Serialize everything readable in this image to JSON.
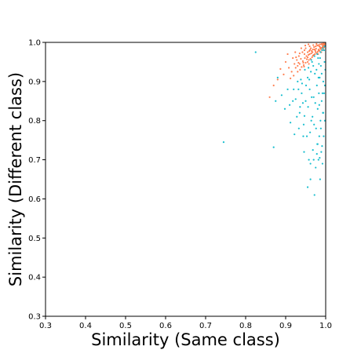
{
  "chart_data": {
    "type": "scatter",
    "title": "",
    "xlabel": "Similarity (Same class)",
    "ylabel": "Similarity (Different class)",
    "xlim": [
      0.3,
      1.0
    ],
    "ylim": [
      0.3,
      1.0
    ],
    "x_ticks": [
      "0.3",
      "0.4",
      "0.5",
      "0.6",
      "0.7",
      "0.8",
      "0.9",
      "1.0"
    ],
    "y_ticks": [
      "0.3",
      "0.4",
      "0.5",
      "0.6",
      "0.7",
      "0.8",
      "0.9",
      "1.0"
    ],
    "grid": false,
    "legend": "none",
    "series": [
      {
        "color": "#ff7f50",
        "points": [
          [
            0.975,
            0.975
          ],
          [
            0.978,
            0.972
          ],
          [
            0.982,
            0.98
          ],
          [
            0.985,
            0.978
          ],
          [
            0.988,
            0.983
          ],
          [
            0.99,
            0.986
          ],
          [
            0.992,
            0.988
          ],
          [
            0.97,
            0.968
          ],
          [
            0.966,
            0.962
          ],
          [
            0.973,
            0.97
          ],
          [
            0.98,
            0.976
          ],
          [
            0.983,
            0.982
          ],
          [
            0.987,
            0.985
          ],
          [
            0.993,
            0.99
          ],
          [
            0.995,
            0.993
          ],
          [
            0.968,
            0.966
          ],
          [
            0.962,
            0.958
          ],
          [
            0.958,
            0.955
          ],
          [
            0.955,
            0.95
          ],
          [
            0.95,
            0.948
          ],
          [
            0.945,
            0.942
          ],
          [
            0.94,
            0.937
          ],
          [
            0.952,
            0.965
          ],
          [
            0.96,
            0.97
          ],
          [
            0.976,
            0.984
          ],
          [
            0.984,
            0.99
          ],
          [
            0.991,
            0.994
          ],
          [
            0.997,
            0.996
          ],
          [
            0.964,
            0.972
          ],
          [
            0.957,
            0.968
          ],
          [
            0.948,
            0.96
          ],
          [
            0.943,
            0.952
          ],
          [
            0.935,
            0.945
          ],
          [
            0.93,
            0.94
          ],
          [
            0.925,
            0.935
          ],
          [
            0.938,
            0.958
          ],
          [
            0.947,
            0.97
          ],
          [
            0.955,
            0.975
          ],
          [
            0.961,
            0.981
          ],
          [
            0.971,
            0.988
          ],
          [
            0.979,
            0.992
          ],
          [
            0.986,
            0.995
          ],
          [
            0.994,
            0.997
          ],
          [
            0.915,
            0.925
          ],
          [
            0.905,
            0.97
          ],
          [
            0.918,
            0.96
          ],
          [
            0.928,
            0.955
          ],
          [
            0.933,
            0.965
          ],
          [
            0.942,
            0.975
          ],
          [
            0.95,
            0.985
          ],
          [
            0.96,
            0.99
          ],
          [
            0.969,
            0.993
          ],
          [
            0.977,
            0.996
          ],
          [
            0.981,
            0.97
          ],
          [
            0.989,
            0.975
          ],
          [
            0.994,
            0.981
          ],
          [
            0.996,
            0.987
          ],
          [
            0.998,
            0.992
          ],
          [
            0.965,
            0.978
          ],
          [
            0.972,
            0.982
          ],
          [
            0.958,
            0.945
          ],
          [
            0.946,
            0.938
          ],
          [
            0.936,
            0.93
          ],
          [
            0.92,
            0.915
          ],
          [
            0.912,
            0.908
          ],
          [
            0.93,
            0.925
          ],
          [
            0.955,
            0.962
          ],
          [
            0.967,
            0.975
          ],
          [
            0.974,
            0.979
          ],
          [
            0.986,
            0.988
          ],
          [
            0.953,
            0.957
          ],
          [
            0.944,
            0.948
          ],
          [
            0.932,
            0.948
          ],
          [
            0.922,
            0.945
          ],
          [
            0.924,
            0.975
          ],
          [
            0.939,
            0.985
          ],
          [
            0.949,
            0.992
          ],
          [
            0.957,
            0.995
          ],
          [
            0.999,
            0.998
          ],
          [
            0.963,
            0.985
          ],
          [
            0.975,
            0.99
          ],
          [
            0.982,
            0.993
          ],
          [
            0.99,
            0.996
          ],
          [
            0.968,
            0.982
          ],
          [
            0.959,
            0.978
          ],
          [
            0.947,
            0.98
          ],
          [
            0.935,
            0.972
          ],
          [
            0.926,
            0.962
          ],
          [
            0.908,
            0.935
          ],
          [
            0.895,
            0.918
          ],
          [
            0.88,
            0.905
          ],
          [
            0.87,
            0.89
          ],
          [
            0.86,
            0.86
          ],
          [
            0.887,
            0.932
          ],
          [
            0.9,
            0.95
          ]
        ]
      },
      {
        "color": "#17becf",
        "points": [
          [
            0.825,
            0.975
          ],
          [
            0.745,
            0.745
          ],
          [
            0.87,
            0.732
          ],
          [
            0.88,
            0.91
          ],
          [
            0.89,
            0.865
          ],
          [
            0.91,
            0.84
          ],
          [
            0.92,
            0.88
          ],
          [
            0.93,
            0.9
          ],
          [
            0.935,
            0.82
          ],
          [
            0.94,
            0.87
          ],
          [
            0.945,
            0.79
          ],
          [
            0.948,
            0.93
          ],
          [
            0.95,
            0.85
          ],
          [
            0.953,
            0.76
          ],
          [
            0.955,
            0.91
          ],
          [
            0.958,
            0.7
          ],
          [
            0.96,
            0.88
          ],
          [
            0.962,
            0.65
          ],
          [
            0.964,
            0.8
          ],
          [
            0.966,
            0.95
          ],
          [
            0.968,
            0.725
          ],
          [
            0.97,
            0.86
          ],
          [
            0.972,
            0.61
          ],
          [
            0.973,
            0.92
          ],
          [
            0.975,
            0.68
          ],
          [
            0.976,
            0.78
          ],
          [
            0.978,
            0.89
          ],
          [
            0.979,
            0.74
          ],
          [
            0.98,
            0.83
          ],
          [
            0.981,
            0.96
          ],
          [
            0.982,
            0.7
          ],
          [
            0.983,
            0.87
          ],
          [
            0.984,
            0.76
          ],
          [
            0.985,
            0.91
          ],
          [
            0.986,
            0.65
          ],
          [
            0.987,
            0.8
          ],
          [
            0.988,
            0.94
          ],
          [
            0.989,
            0.72
          ],
          [
            0.99,
            0.85
          ],
          [
            0.991,
            0.98
          ],
          [
            0.992,
            0.69
          ],
          [
            0.993,
            0.82
          ],
          [
            0.994,
            0.9
          ],
          [
            0.995,
            0.76
          ],
          [
            0.996,
            0.87
          ],
          [
            0.997,
            0.95
          ],
          [
            0.998,
            0.8
          ],
          [
            0.999,
            0.93
          ],
          [
            0.905,
            0.88
          ],
          [
            0.925,
            0.855
          ],
          [
            0.938,
            0.905
          ],
          [
            0.943,
            0.845
          ],
          [
            0.947,
            0.812
          ],
          [
            0.951,
            0.89
          ],
          [
            0.956,
            0.835
          ],
          [
            0.959,
            0.905
          ],
          [
            0.961,
            0.77
          ],
          [
            0.963,
            0.925
          ],
          [
            0.965,
            0.86
          ],
          [
            0.967,
            0.81
          ],
          [
            0.969,
            0.94
          ],
          [
            0.971,
            0.79
          ],
          [
            0.974,
            0.845
          ],
          [
            0.977,
            0.93
          ],
          [
            0.98,
            0.74
          ],
          [
            0.982,
            0.91
          ],
          [
            0.984,
            0.84
          ],
          [
            0.986,
            0.96
          ],
          [
            0.988,
            0.78
          ],
          [
            0.99,
            0.92
          ],
          [
            0.992,
            0.87
          ],
          [
            0.994,
            0.82
          ],
          [
            0.996,
            0.98
          ],
          [
            0.998,
            0.89
          ],
          [
            0.955,
            0.63
          ],
          [
            0.962,
            0.69
          ],
          [
            0.97,
            0.7
          ],
          [
            0.978,
            0.715
          ],
          [
            0.985,
            0.705
          ],
          [
            0.991,
            0.735
          ],
          [
            0.944,
            0.76
          ],
          [
            0.932,
            0.88
          ],
          [
            0.918,
            0.85
          ],
          [
            0.928,
            0.81
          ],
          [
            0.936,
            0.835
          ],
          [
            0.941,
            0.895
          ],
          [
            0.957,
            0.935
          ],
          [
            0.964,
            0.955
          ],
          [
            0.972,
            0.965
          ],
          [
            0.979,
            0.97
          ],
          [
            0.983,
            0.945
          ],
          [
            0.987,
            0.975
          ],
          [
            0.993,
            0.985
          ],
          [
            0.997,
            0.99
          ],
          [
            0.875,
            0.85
          ],
          [
            0.898,
            0.83
          ],
          [
            0.912,
            0.795
          ],
          [
            0.922,
            0.765
          ],
          [
            0.933,
            0.78
          ],
          [
            0.946,
            0.72
          ]
        ]
      }
    ]
  }
}
